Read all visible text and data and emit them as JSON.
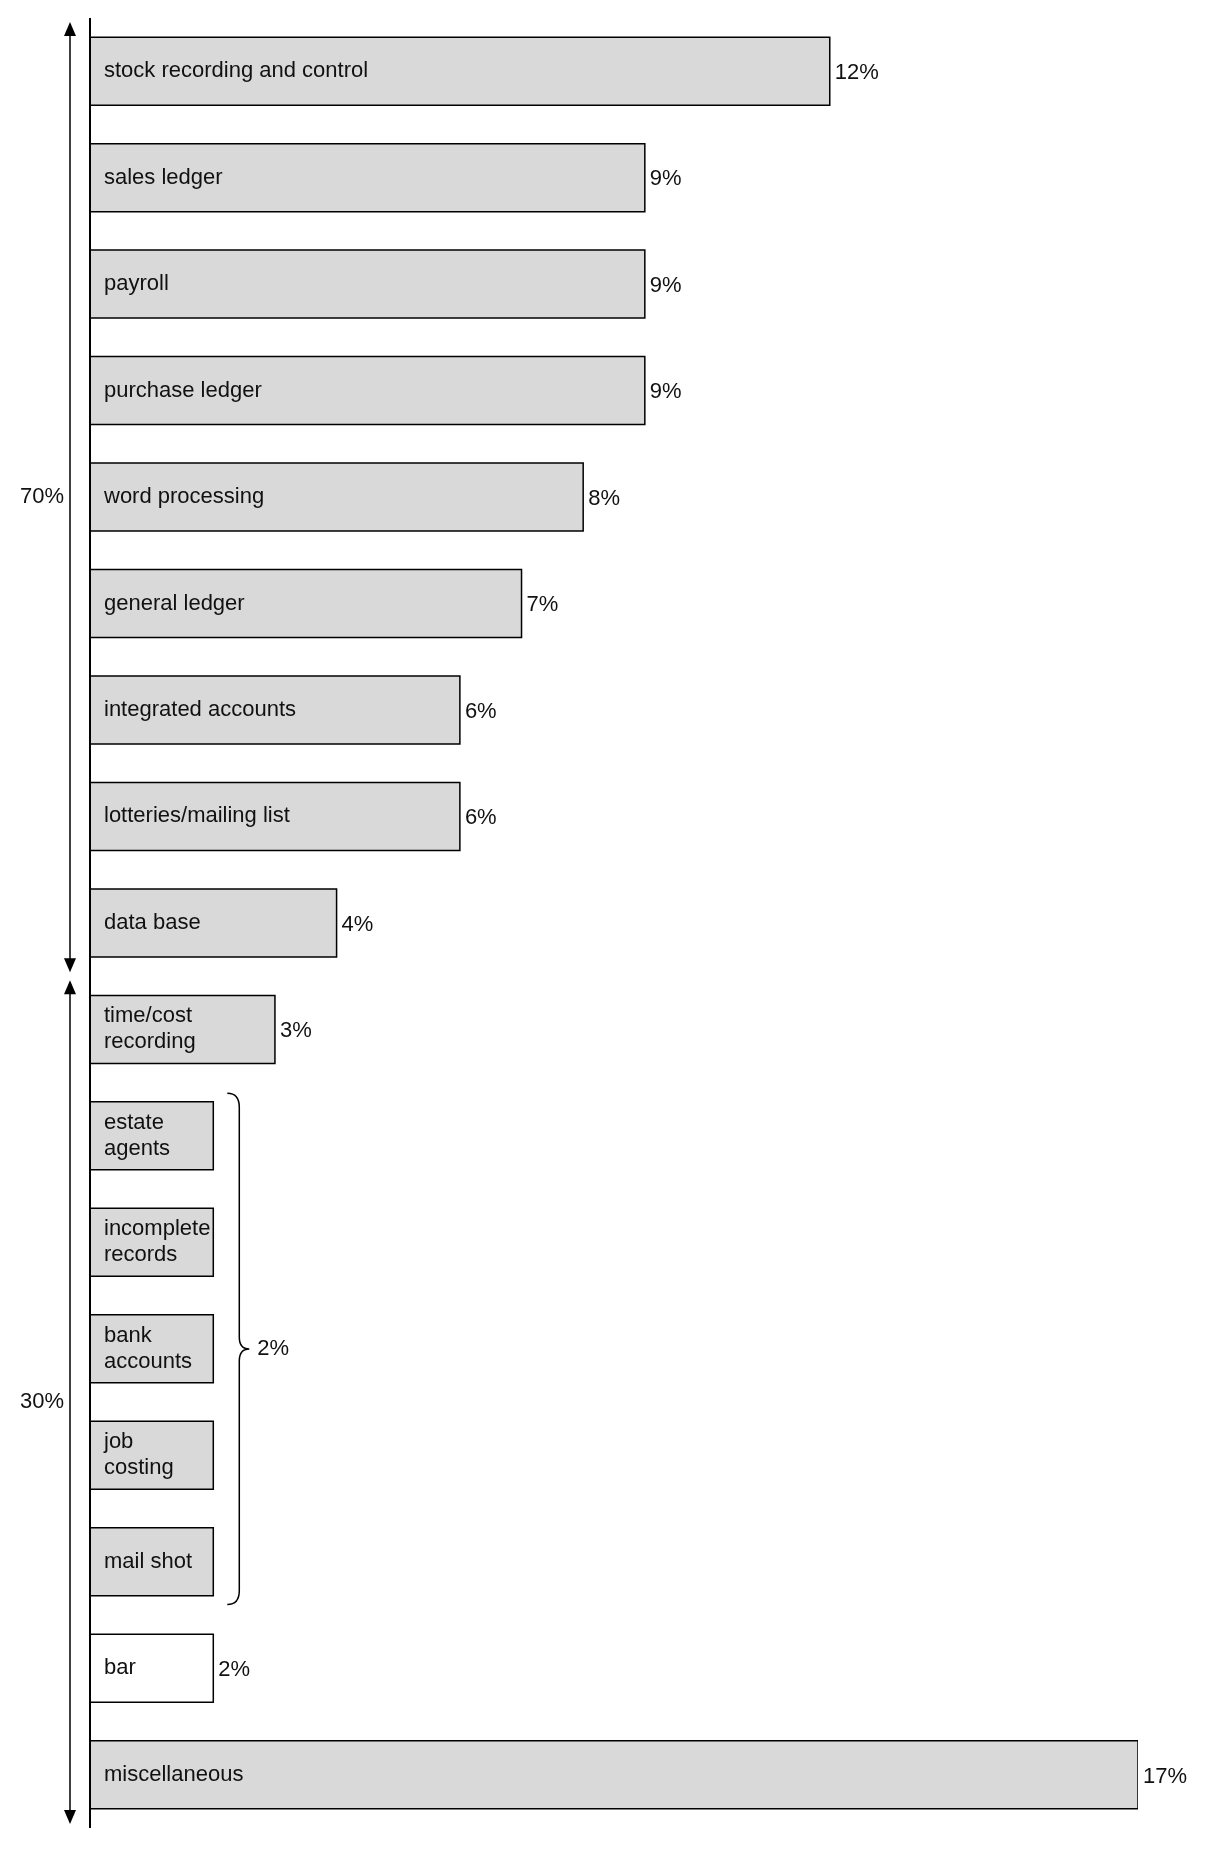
{
  "chart_data": {
    "type": "bar",
    "orientation": "horizontal",
    "categories": [
      "stock recording and control",
      "sales ledger",
      "payroll",
      "purchase ledger",
      "word processing",
      "general ledger",
      "integrated accounts",
      "lotteries/mailing list",
      "data base",
      "time/cost recording",
      "estate agents",
      "incomplete records",
      "bank accounts",
      "job costing",
      "mail shot",
      "bar",
      "miscellaneous"
    ],
    "values": [
      12,
      9,
      9,
      9,
      8,
      7,
      6,
      6,
      4,
      3,
      2,
      2,
      2,
      2,
      2,
      2,
      17
    ],
    "colors": [
      "#d9d9d9",
      "#d9d9d9",
      "#d9d9d9",
      "#d9d9d9",
      "#d9d9d9",
      "#d9d9d9",
      "#d9d9d9",
      "#d9d9d9",
      "#d9d9d9",
      "#d9d9d9",
      "#d9d9d9",
      "#d9d9d9",
      "#d9d9d9",
      "#d9d9d9",
      "#d9d9d9",
      "#ffffff",
      "#d9d9d9"
    ],
    "value_labels": [
      "12%",
      "9%",
      "9%",
      "9%",
      "8%",
      "7%",
      "6%",
      "6%",
      "4%",
      "3%",
      null,
      null,
      null,
      null,
      null,
      "2%",
      "17%"
    ],
    "annotations": [
      "70%",
      "30%",
      "2%"
    ]
  }
}
